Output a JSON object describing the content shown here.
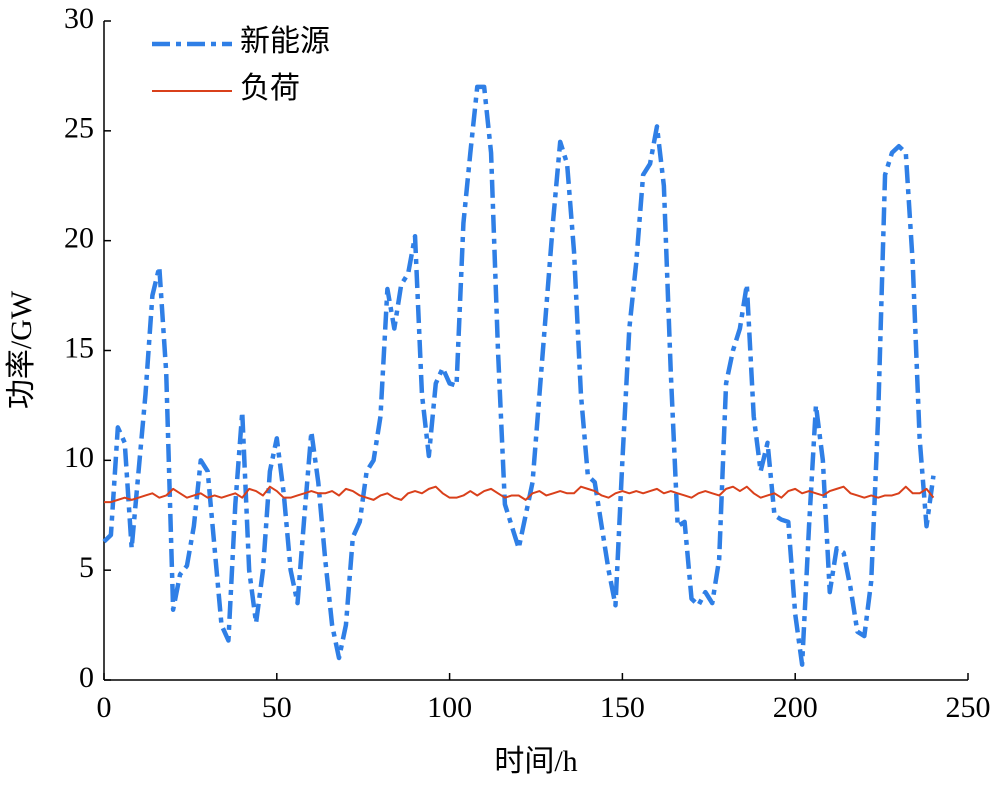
{
  "chart_data": {
    "type": "line",
    "x_label": "时间/h",
    "y_label": "功率/GW",
    "x": [
      0,
      2,
      4,
      6,
      8,
      10,
      12,
      14,
      16,
      18,
      20,
      22,
      24,
      26,
      28,
      30,
      32,
      34,
      36,
      38,
      40,
      42,
      44,
      46,
      48,
      50,
      52,
      54,
      56,
      58,
      60,
      62,
      64,
      66,
      68,
      70,
      72,
      74,
      76,
      78,
      80,
      82,
      84,
      86,
      88,
      90,
      92,
      94,
      96,
      98,
      100,
      102,
      104,
      106,
      108,
      110,
      112,
      114,
      116,
      118,
      120,
      122,
      124,
      126,
      128,
      130,
      132,
      134,
      136,
      138,
      140,
      142,
      144,
      146,
      148,
      150,
      152,
      154,
      156,
      158,
      160,
      162,
      164,
      166,
      168,
      170,
      172,
      174,
      176,
      178,
      180,
      182,
      184,
      186,
      188,
      190,
      192,
      194,
      196,
      198,
      200,
      202,
      204,
      206,
      208,
      210,
      212,
      214,
      216,
      218,
      220,
      222,
      224,
      226,
      228,
      230,
      232,
      234,
      236,
      238,
      240
    ],
    "series": [
      {
        "name": "新能源",
        "color": "#2f7fe6",
        "dash": true,
        "values": [
          6.3,
          6.6,
          11.5,
          10.8,
          6.0,
          9.5,
          13,
          17.5,
          18.8,
          14,
          3.2,
          4.8,
          5.2,
          7,
          10,
          9.5,
          6,
          2.5,
          1.8,
          8,
          12.2,
          5,
          2.6,
          5,
          9.5,
          11,
          8.5,
          5,
          3.5,
          7.5,
          11.3,
          9,
          5.5,
          2.5,
          1.0,
          2.5,
          6.5,
          7.2,
          9.5,
          10,
          12,
          17.8,
          16,
          18,
          18.5,
          20.2,
          13,
          10.2,
          13.5,
          14.2,
          13.5,
          13.4,
          20.8,
          24,
          27,
          27,
          24,
          15,
          8,
          7,
          6,
          7.5,
          9,
          13,
          17,
          21,
          24.5,
          23.5,
          19.5,
          13,
          9.3,
          9,
          7,
          5,
          3.4,
          10,
          16,
          19,
          23,
          23.5,
          25.2,
          22.5,
          14,
          7,
          7.2,
          3.7,
          3.4,
          4,
          3.5,
          5.5,
          13.5,
          15,
          16,
          18,
          12,
          9.5,
          10.8,
          7.5,
          7.3,
          7.2,
          3,
          0.7,
          7,
          12.5,
          10,
          4,
          6,
          5.8,
          4.2,
          2.2,
          2,
          4.5,
          12,
          23,
          24,
          24.3,
          24,
          19,
          11,
          7,
          9.3
        ]
      },
      {
        "name": "负荷",
        "color": "#d9401b",
        "dash": false,
        "values": [
          8.1,
          8.1,
          8.2,
          8.3,
          8.2,
          8.3,
          8.4,
          8.5,
          8.3,
          8.4,
          8.7,
          8.5,
          8.3,
          8.4,
          8.5,
          8.3,
          8.4,
          8.3,
          8.4,
          8.5,
          8.3,
          8.7,
          8.6,
          8.4,
          8.8,
          8.6,
          8.3,
          8.3,
          8.4,
          8.5,
          8.6,
          8.5,
          8.5,
          8.6,
          8.4,
          8.7,
          8.6,
          8.4,
          8.3,
          8.2,
          8.4,
          8.5,
          8.3,
          8.2,
          8.5,
          8.6,
          8.5,
          8.7,
          8.8,
          8.5,
          8.3,
          8.3,
          8.4,
          8.6,
          8.4,
          8.6,
          8.7,
          8.5,
          8.3,
          8.4,
          8.4,
          8.2,
          8.5,
          8.6,
          8.4,
          8.5,
          8.6,
          8.5,
          8.5,
          8.8,
          8.7,
          8.6,
          8.4,
          8.3,
          8.5,
          8.6,
          8.5,
          8.6,
          8.5,
          8.6,
          8.7,
          8.5,
          8.6,
          8.5,
          8.4,
          8.3,
          8.5,
          8.6,
          8.5,
          8.4,
          8.7,
          8.8,
          8.6,
          8.8,
          8.5,
          8.3,
          8.4,
          8.5,
          8.3,
          8.6,
          8.7,
          8.5,
          8.6,
          8.5,
          8.4,
          8.6,
          8.7,
          8.8,
          8.5,
          8.4,
          8.3,
          8.4,
          8.3,
          8.4,
          8.4,
          8.5,
          8.8,
          8.5,
          8.5,
          8.7,
          8.3
        ]
      }
    ],
    "xlim": [
      0,
      250
    ],
    "xticks": [
      0,
      50,
      100,
      150,
      200,
      250
    ],
    "ylim": [
      0,
      30
    ],
    "yticks": [
      0,
      5,
      10,
      15,
      20,
      25,
      30
    ],
    "legend": "upper left"
  }
}
